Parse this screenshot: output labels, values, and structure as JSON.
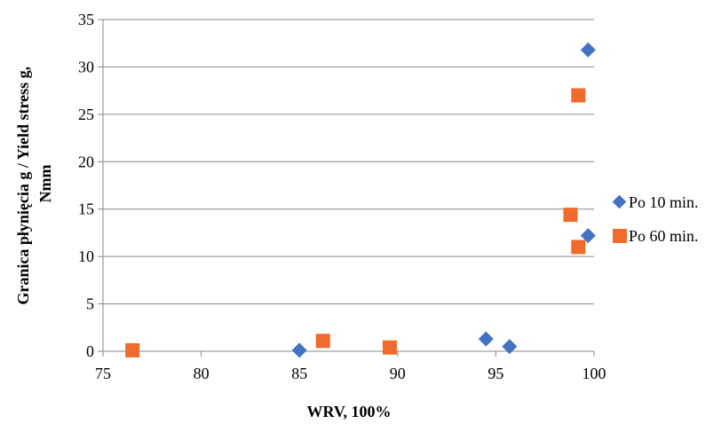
{
  "chart_data": {
    "type": "scatter",
    "title": "",
    "xlabel": "WRV, 100%",
    "ylabel": [
      "Granica płynięcia g / Yield stress g,",
      "Nmm"
    ],
    "xlim": [
      75,
      100
    ],
    "ylim": [
      0,
      35
    ],
    "xticks": [
      75,
      80,
      85,
      90,
      95,
      100
    ],
    "yticks": [
      0,
      5,
      10,
      15,
      20,
      25,
      30,
      35
    ],
    "grid": "horizontal",
    "legend_position": "right",
    "series": [
      {
        "name": "Po 10 min.",
        "marker": "diamond",
        "color": "#4173C2",
        "points": [
          [
            85.0,
            0.1
          ],
          [
            94.5,
            1.3
          ],
          [
            95.7,
            0.5
          ],
          [
            99.7,
            12.2
          ],
          [
            99.7,
            31.8
          ]
        ]
      },
      {
        "name": "Po 60 min.",
        "marker": "square",
        "color": "#EF6A2C",
        "points": [
          [
            76.5,
            0.1
          ],
          [
            86.2,
            1.1
          ],
          [
            89.6,
            0.4
          ],
          [
            98.8,
            14.4
          ],
          [
            99.2,
            11.0
          ],
          [
            99.2,
            27.0
          ]
        ]
      }
    ]
  }
}
